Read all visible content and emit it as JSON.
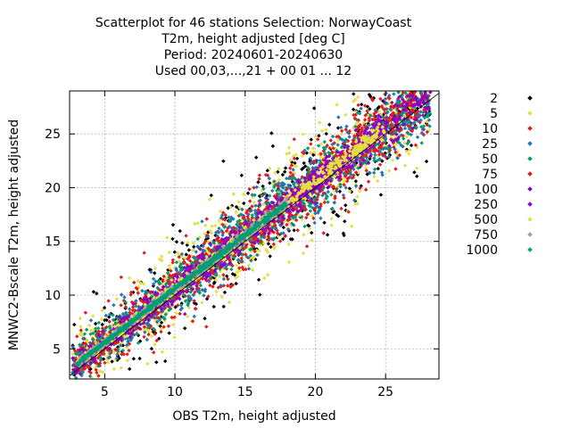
{
  "chart_data": {
    "type": "scatter",
    "title_lines": [
      "Scatterplot for   46 stations Selection: NorwayCoast",
      "T2m, height adjusted [deg C]",
      "Period: 20240601-20240630",
      "Used 00,03,...,21 + 00 01 ... 12"
    ],
    "xlabel": "OBS T2m, height adjusted",
    "ylabel": "MNWC2-Bscale T2m, height adjusted",
    "xlim": [
      2.5,
      28.8
    ],
    "ylim": [
      2.2,
      29.0
    ],
    "xticks": [
      5,
      10,
      15,
      20,
      25
    ],
    "yticks": [
      5,
      10,
      15,
      20,
      25
    ],
    "grid": true,
    "diagonal_line": true,
    "legend_placement": "right",
    "series": [
      {
        "name": "2",
        "color": "#000000",
        "spread": 2.6
      },
      {
        "name": "5",
        "color": "#e5e040",
        "spread": 2.2
      },
      {
        "name": "10",
        "color": "#e41a1c",
        "spread": 1.8
      },
      {
        "name": "25",
        "color": "#1f78b4",
        "spread": 1.45
      },
      {
        "name": "50",
        "color": "#009e73",
        "spread": 1.15
      },
      {
        "name": "75",
        "color": "#e41a1c",
        "spread": 0.9
      },
      {
        "name": "100",
        "color": "#8b00c9",
        "spread": 0.7
      },
      {
        "name": "250",
        "color": "#9400d3",
        "spread": 0.5
      },
      {
        "name": "500",
        "color": "#e5e040",
        "spread": 0.35
      },
      {
        "name": "750",
        "color": "#a0a0a0",
        "spread": 0.22
      },
      {
        "name": "1000",
        "color": "#009e73",
        "spread": 0.12
      }
    ]
  }
}
